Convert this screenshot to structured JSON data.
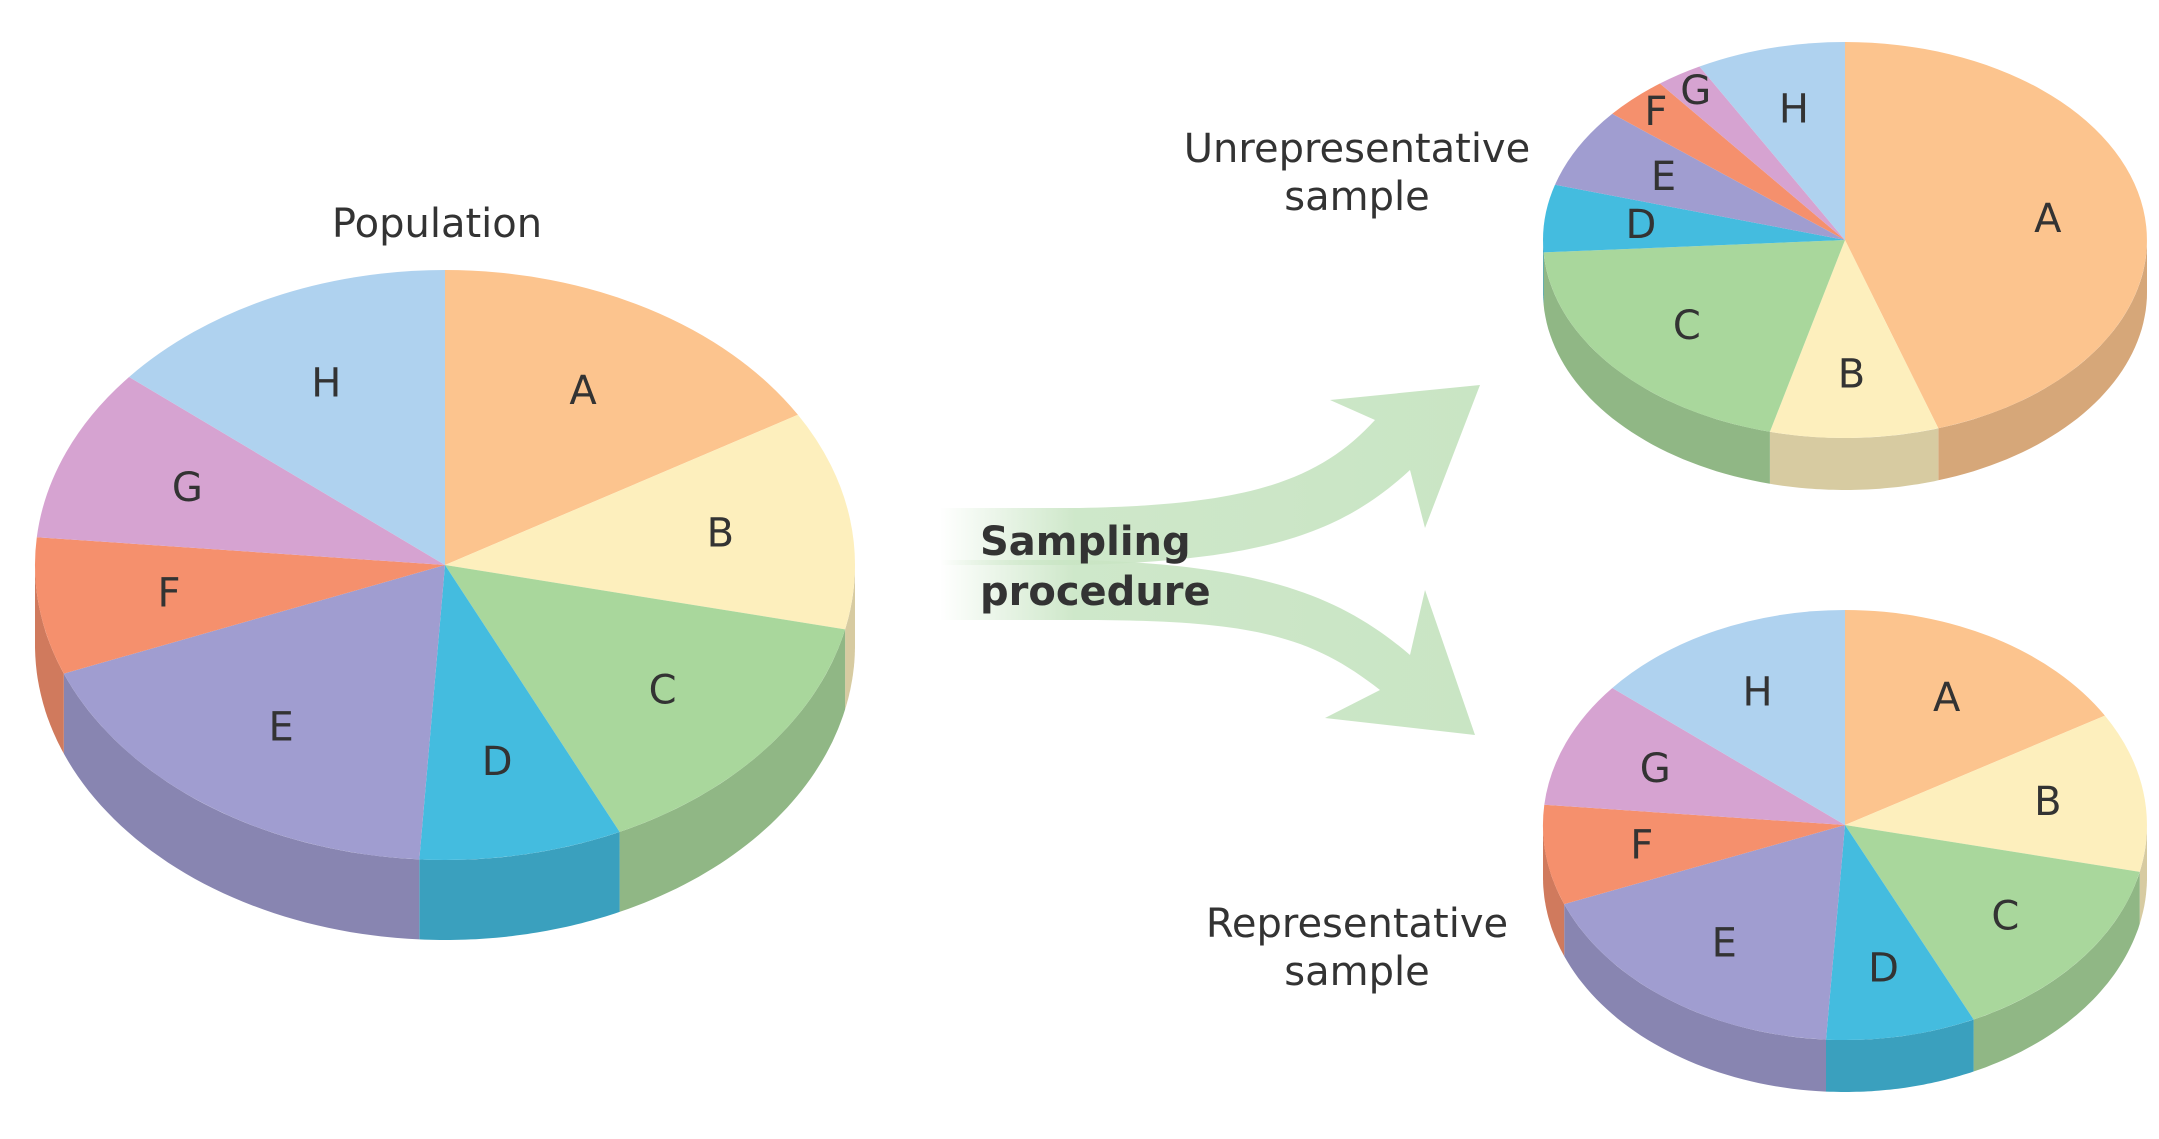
{
  "captions": {
    "population": "Population",
    "unrepresentative_line1": "Unrepresentative",
    "unrepresentative_line2": "sample",
    "representative_line1": "Representative",
    "representative_line2": "sample",
    "procedure_line1": "Sampling",
    "procedure_line2": "procedure"
  },
  "colors": {
    "A": "#fcc48e",
    "B": "#fdefbd",
    "C": "#a9d79c",
    "D": "#44bcdf",
    "E": "#a09dd0",
    "F": "#f5906d",
    "G": "#d6a3d1",
    "H": "#afd2ef",
    "arrow": "#c9e5c4"
  },
  "pies": [
    {
      "id": "population",
      "segments": [
        {
          "label": "A",
          "value": 16.5
        },
        {
          "label": "B",
          "value": 12.0
        },
        {
          "label": "C",
          "value": 14.5
        },
        {
          "label": "D",
          "value": 8.0
        },
        {
          "label": "E",
          "value": 18.0
        },
        {
          "label": "F",
          "value": 7.5
        },
        {
          "label": "G",
          "value": 9.5
        },
        {
          "label": "H",
          "value": 14.0
        }
      ]
    },
    {
      "id": "unrepresentative",
      "segments": [
        {
          "label": "A",
          "value": 45.0
        },
        {
          "label": "B",
          "value": 9.0
        },
        {
          "label": "C",
          "value": 20.0
        },
        {
          "label": "D",
          "value": 5.5
        },
        {
          "label": "E",
          "value": 6.5
        },
        {
          "label": "F",
          "value": 3.5
        },
        {
          "label": "G",
          "value": 2.5
        },
        {
          "label": "H",
          "value": 8.0
        }
      ]
    },
    {
      "id": "representative",
      "segments": [
        {
          "label": "A",
          "value": 16.5
        },
        {
          "label": "B",
          "value": 12.0
        },
        {
          "label": "C",
          "value": 14.5
        },
        {
          "label": "D",
          "value": 8.0
        },
        {
          "label": "E",
          "value": 18.0
        },
        {
          "label": "F",
          "value": 7.5
        },
        {
          "label": "G",
          "value": 9.5
        },
        {
          "label": "H",
          "value": 14.0
        }
      ]
    }
  ]
}
